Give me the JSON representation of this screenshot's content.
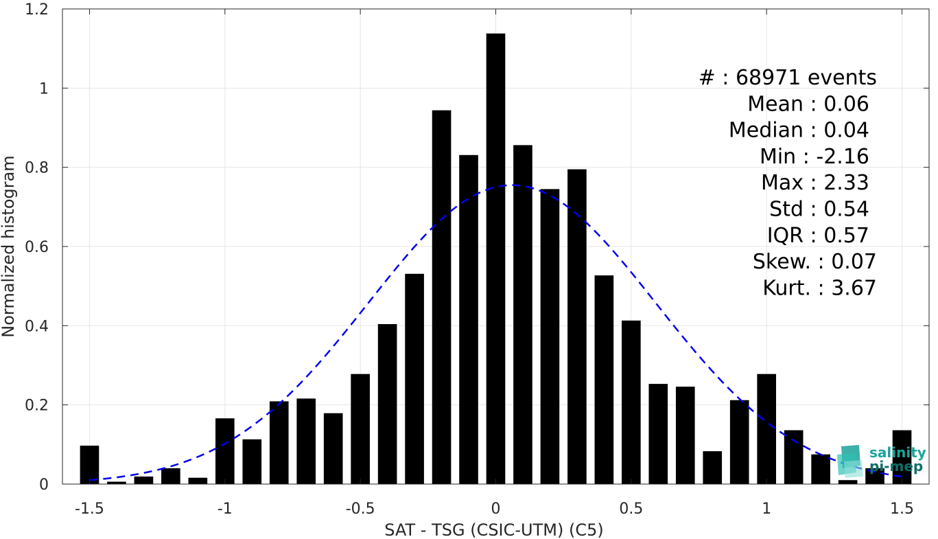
{
  "chart_data": {
    "type": "bar",
    "xlabel": "SAT - TSG (CSIC-UTM) (C5)",
    "ylabel": "Normalized histogram",
    "xlim": [
      -1.6,
      1.6
    ],
    "ylim": [
      0,
      1.2
    ],
    "xticks": [
      -1.5,
      -1,
      -0.5,
      0,
      0.5,
      1,
      1.5
    ],
    "xtick_labels": [
      "-1.5",
      "-1",
      "-0.5",
      "0",
      "0.5",
      "1",
      "1.5"
    ],
    "yticks": [
      0,
      0.2,
      0.4,
      0.6,
      0.8,
      1,
      1.2
    ],
    "ytick_labels": [
      "0",
      "0.2",
      "0.4",
      "0.6",
      "0.8",
      "1",
      "1.2"
    ],
    "grid": true,
    "bar_color": "#000000",
    "bars": {
      "x": [
        -1.5,
        -1.4,
        -1.3,
        -1.2,
        -1.1,
        -1.0,
        -0.9,
        -0.8,
        -0.7,
        -0.6,
        -0.5,
        -0.4,
        -0.3,
        -0.2,
        -0.1,
        0.0,
        0.1,
        0.2,
        0.3,
        0.4,
        0.5,
        0.6,
        0.7,
        0.8,
        0.9,
        1.0,
        1.1,
        1.2,
        1.3,
        1.4,
        1.5
      ],
      "values": [
        0.097,
        0.006,
        0.019,
        0.04,
        0.016,
        0.166,
        0.113,
        0.209,
        0.216,
        0.179,
        0.278,
        0.404,
        0.531,
        0.944,
        0.831,
        1.138,
        0.856,
        0.745,
        0.795,
        0.527,
        0.413,
        0.253,
        0.246,
        0.083,
        0.212,
        0.278,
        0.136,
        0.075,
        0.01,
        0.04,
        0.136
      ]
    },
    "fit_curve": {
      "style": "dashed",
      "color": "#0000ee",
      "mean": 0.06,
      "std": 0.53,
      "peak": 0.755,
      "x_range": [
        -1.5,
        1.5
      ]
    }
  },
  "stats": [
    {
      "label": "#  ",
      "value": "68971 events"
    },
    {
      "label": "Mean",
      "value": "0.06"
    },
    {
      "label": "Median",
      "value": "0.04"
    },
    {
      "label": "Min",
      "value": "-2.16"
    },
    {
      "label": "Max",
      "value": "2.33"
    },
    {
      "label": "Std",
      "value": "0.54"
    },
    {
      "label": "IQR",
      "value": "0.57"
    },
    {
      "label": "Skew.",
      "value": "0.07"
    },
    {
      "label": "Kurt.",
      "value": "3.67"
    }
  ],
  "logo": {
    "line1": "salinity",
    "line2": "pi-mep",
    "color": "#1aa39a"
  }
}
